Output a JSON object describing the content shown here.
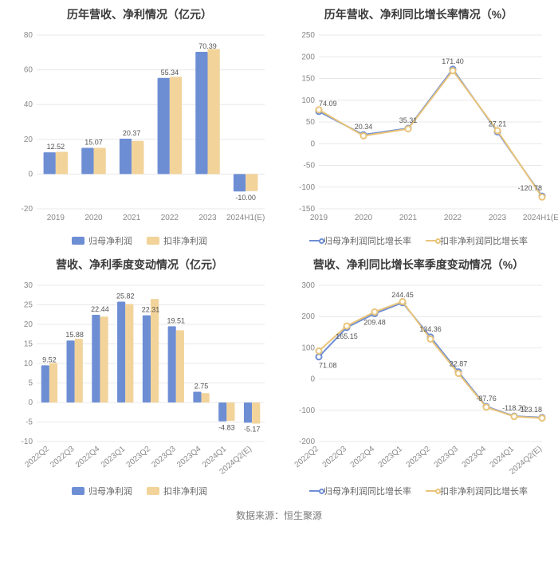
{
  "source": "数据来源：恒生聚源",
  "panels": {
    "tl": {
      "title": "历年营收、净利情况（亿元）",
      "type": "bar",
      "categories": [
        "2019",
        "2020",
        "2021",
        "2022",
        "2023",
        "2024H1(E)"
      ],
      "series": [
        {
          "name": "归母净利润",
          "color": "#6e8ed4",
          "values": [
            12.52,
            15.07,
            20.37,
            55.34,
            70.39,
            -10.0
          ]
        },
        {
          "name": "扣非净利润",
          "color": "#f2d39a",
          "values": [
            12.8,
            15.1,
            19.1,
            56.0,
            72.0,
            -9.8
          ]
        }
      ],
      "labeled_points": [
        {
          "cat": "2019",
          "value": 12.52,
          "series": 0
        },
        {
          "cat": "2020",
          "value": 15.07,
          "series": 0
        },
        {
          "cat": "2021",
          "value": 20.37,
          "series": 0
        },
        {
          "cat": "2022",
          "value": 55.34,
          "series": 0
        },
        {
          "cat": "2023",
          "value": 70.39,
          "series": 0
        },
        {
          "cat": "2024H1(E)",
          "value": -10.0,
          "series": 0
        }
      ],
      "ylim": [
        -20,
        80
      ],
      "ytick_step": 20,
      "x_rotate": false,
      "grid_color": "#e8e8e8",
      "axis_label_color": "#888888",
      "axis_fontsize": 10,
      "label_fontsize": 9
    },
    "tr": {
      "title": "历年营收、净利同比增长率情况（%）",
      "type": "line",
      "categories": [
        "2019",
        "2020",
        "2021",
        "2022",
        "2023",
        "2024H1(E)"
      ],
      "series": [
        {
          "name": "归母净利润同比增长率",
          "color": "#6e8ed4",
          "marker_fill": "#ffffff",
          "values": [
            74.09,
            20.34,
            35.31,
            171.4,
            27.21,
            -120.78
          ]
        },
        {
          "name": "扣非净利润同比增长率",
          "color": "#e9c47a",
          "marker_fill": "#ffffff",
          "values": [
            78,
            18,
            34,
            168,
            30,
            -123
          ]
        }
      ],
      "labeled_points": [
        {
          "cat": "2019",
          "value": 74.09,
          "pos": "above"
        },
        {
          "cat": "2020",
          "value": 20.34,
          "pos": "above"
        },
        {
          "cat": "2021",
          "value": 35.31,
          "pos": "above"
        },
        {
          "cat": "2022",
          "value": 171.4,
          "pos": "above"
        },
        {
          "cat": "2023",
          "value": 27.21,
          "pos": "above"
        },
        {
          "cat": "2024H1(E)",
          "value": -120.78,
          "pos": "above"
        }
      ],
      "ylim": [
        -150,
        250
      ],
      "ytick_step": 50,
      "x_rotate": false,
      "grid_color": "#e8e8e8",
      "axis_label_color": "#888888",
      "axis_fontsize": 10,
      "label_fontsize": 9
    },
    "bl": {
      "title": "营收、净利季度变动情况（亿元）",
      "type": "bar",
      "categories": [
        "2022Q2",
        "2022Q3",
        "2022Q4",
        "2023Q1",
        "2023Q2",
        "2023Q3",
        "2023Q4",
        "2024Q1",
        "2024Q2(E)"
      ],
      "series": [
        {
          "name": "归母净利润",
          "color": "#6e8ed4",
          "values": [
            9.52,
            15.88,
            22.44,
            25.82,
            22.31,
            19.51,
            2.75,
            -4.83,
            -5.17
          ]
        },
        {
          "name": "扣非净利润",
          "color": "#f2d39a",
          "values": [
            10.1,
            16.3,
            22.0,
            25.2,
            26.5,
            18.5,
            2.4,
            -4.7,
            -5.4
          ]
        }
      ],
      "labeled_points": [
        {
          "cat": "2022Q2",
          "value": 9.52,
          "series": 0
        },
        {
          "cat": "2022Q3",
          "value": 15.88,
          "series": 0
        },
        {
          "cat": "2022Q4",
          "value": 22.44,
          "series": 0
        },
        {
          "cat": "2023Q1",
          "value": 25.82,
          "series": 0
        },
        {
          "cat": "2023Q2",
          "value": 22.31,
          "series": 0
        },
        {
          "cat": "2023Q3",
          "value": 19.51,
          "series": 0
        },
        {
          "cat": "2023Q4",
          "value": 2.75,
          "series": 0
        },
        {
          "cat": "2024Q1",
          "value": -4.83,
          "series": 0
        },
        {
          "cat": "2024Q2(E)",
          "value": -5.17,
          "series": 0
        }
      ],
      "ylim": [
        -10,
        30
      ],
      "ytick_step": 5,
      "x_rotate": true,
      "grid_color": "#e8e8e8",
      "axis_label_color": "#888888",
      "axis_fontsize": 10,
      "label_fontsize": 9
    },
    "br": {
      "title": "营收、净利同比增长率季度变动情况（%）",
      "type": "line",
      "categories": [
        "2022Q2",
        "2022Q3",
        "2022Q4",
        "2023Q1",
        "2023Q2",
        "2023Q3",
        "2023Q4",
        "2024Q1",
        "2024Q2(E)"
      ],
      "series": [
        {
          "name": "归母净利润同比增长率",
          "color": "#6e8ed4",
          "marker_fill": "#ffffff",
          "values": [
            71.08,
            165.15,
            209.48,
            244.45,
            134.36,
            22.87,
            -87.76,
            -118.7,
            -123.18
          ]
        },
        {
          "name": "扣非净利润同比增长率",
          "color": "#e9c47a",
          "marker_fill": "#ffffff",
          "values": [
            90,
            170,
            215,
            248,
            128,
            18,
            -90,
            -120,
            -125
          ]
        }
      ],
      "labeled_points": [
        {
          "cat": "2022Q2",
          "value": 71.08,
          "pos": "below"
        },
        {
          "cat": "2022Q3",
          "value": 165.15,
          "pos": "below"
        },
        {
          "cat": "2022Q4",
          "value": 209.48,
          "pos": "below"
        },
        {
          "cat": "2023Q1",
          "value": 244.45,
          "pos": "above"
        },
        {
          "cat": "2023Q2",
          "value": 134.36,
          "pos": "above"
        },
        {
          "cat": "2023Q3",
          "value": 22.87,
          "pos": "above"
        },
        {
          "cat": "2023Q4",
          "value": -87.76,
          "pos": "above"
        },
        {
          "cat": "2024Q1",
          "value": -118.7,
          "pos": "above"
        },
        {
          "cat": "2024Q2(E)",
          "value": -123.18,
          "pos": "above"
        }
      ],
      "ylim": [
        -200,
        300
      ],
      "ytick_step": 100,
      "x_rotate": true,
      "grid_color": "#e8e8e8",
      "axis_label_color": "#888888",
      "axis_fontsize": 10,
      "label_fontsize": 9
    }
  },
  "legend_bar": [
    {
      "label": "归母净利润",
      "color": "#6e8ed4"
    },
    {
      "label": "扣非净利润",
      "color": "#f2d39a"
    }
  ],
  "legend_line": [
    {
      "label": "归母净利润同比增长率",
      "color": "#6e8ed4"
    },
    {
      "label": "扣非净利润同比增长率",
      "color": "#e9c47a"
    }
  ]
}
